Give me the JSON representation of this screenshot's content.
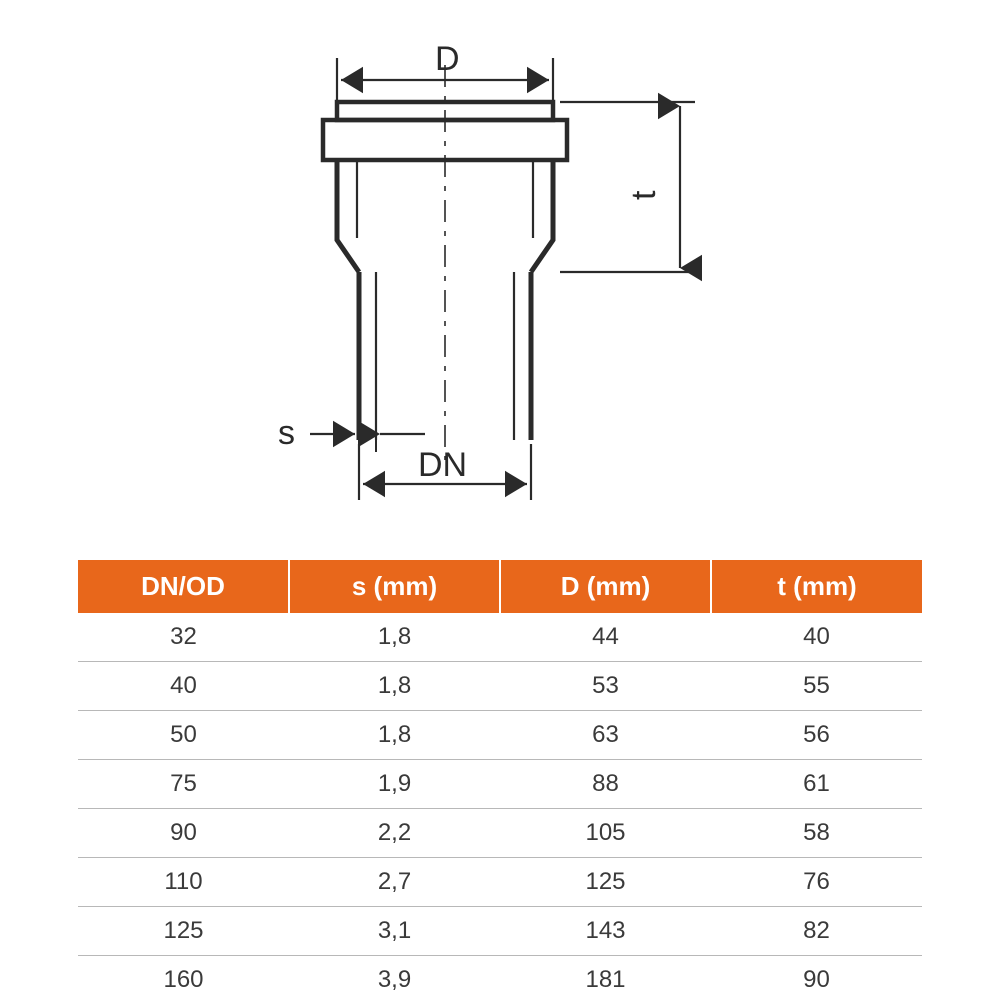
{
  "diagram": {
    "labels": {
      "D": "D",
      "t": "t",
      "s": "s",
      "DN": "DN"
    },
    "stroke_color": "#2a2a2a",
    "fill_color": "#ffffff",
    "pipe_wall_stroke": 5,
    "dim_line_stroke": 2.5,
    "center_dash": "18 10 4 10"
  },
  "table": {
    "header_bg": "#e8671b",
    "header_fg": "#ffffff",
    "row_fg": "#3a3a3a",
    "border_color": "#b8b8b8",
    "columns": [
      "DN/OD",
      "s (mm)",
      "D (mm)",
      "t (mm)"
    ],
    "rows": [
      [
        "32",
        "1,8",
        "44",
        "40"
      ],
      [
        "40",
        "1,8",
        "53",
        "55"
      ],
      [
        "50",
        "1,8",
        "63",
        "56"
      ],
      [
        "75",
        "1,9",
        "88",
        "61"
      ],
      [
        "90",
        "2,2",
        "105",
        "58"
      ],
      [
        "110",
        "2,7",
        "125",
        "76"
      ],
      [
        "125",
        "3,1",
        "143",
        "82"
      ],
      [
        "160",
        "3,9",
        "181",
        "90"
      ]
    ]
  }
}
